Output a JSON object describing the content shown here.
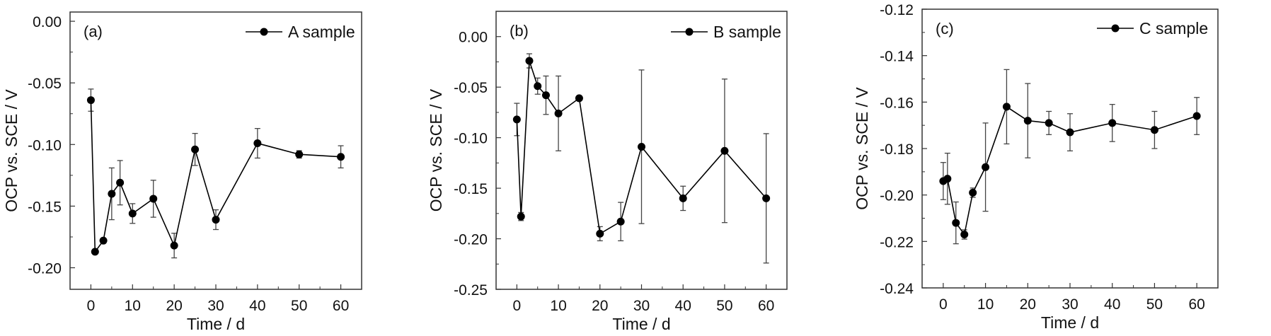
{
  "chart_data": [
    {
      "type": "line",
      "panel_label": "(a)",
      "title": "",
      "xlabel": "Time / d",
      "ylabel": "OCP vs. SCE / V",
      "xlim": [
        -5,
        65
      ],
      "ylim": [
        -0.2175,
        0.0075
      ],
      "xticks": [
        0,
        10,
        20,
        30,
        40,
        50,
        60
      ],
      "xtick_labels": [
        "0",
        "10",
        "20",
        "30",
        "40",
        "50",
        "60"
      ],
      "yticks": [
        0.0,
        -0.05,
        -0.1,
        -0.15,
        -0.2
      ],
      "ytick_labels": [
        "0.00",
        "-0.05",
        "-0.10",
        "-0.15",
        "-0.20"
      ],
      "legend_position": "top-right",
      "grid": false,
      "series": [
        {
          "name": "A sample",
          "color": "#000000",
          "marker": "circle",
          "x": [
            0,
            1,
            3,
            5,
            7,
            10,
            15,
            20,
            25,
            30,
            40,
            50,
            60
          ],
          "y": [
            -0.064,
            -0.187,
            -0.178,
            -0.14,
            -0.131,
            -0.156,
            -0.144,
            -0.182,
            -0.104,
            -0.161,
            -0.099,
            -0.108,
            -0.11
          ],
          "error": [
            0.009,
            0.001,
            0.001,
            0.021,
            0.018,
            0.008,
            0.015,
            0.01,
            0.013,
            0.008,
            0.012,
            0.003,
            0.009
          ]
        }
      ]
    },
    {
      "type": "line",
      "panel_label": "(b)",
      "title": "",
      "xlabel": "Time / d",
      "ylabel": "OCP vs. SCE / V",
      "xlim": [
        -5,
        65
      ],
      "ylim": [
        -0.25,
        0.025
      ],
      "xticks": [
        0,
        10,
        20,
        30,
        40,
        50,
        60
      ],
      "xtick_labels": [
        "0",
        "10",
        "20",
        "30",
        "40",
        "50",
        "60"
      ],
      "yticks": [
        0.0,
        -0.05,
        -0.1,
        -0.15,
        -0.2,
        -0.25
      ],
      "ytick_labels": [
        "0.00",
        "-0.05",
        "-0.10",
        "-0.15",
        "-0.20",
        "-0.25"
      ],
      "legend_position": "top-right",
      "grid": false,
      "series": [
        {
          "name": "B sample",
          "color": "#000000",
          "marker": "circle",
          "x": [
            0,
            1,
            3,
            5,
            7,
            10,
            15,
            20,
            25,
            30,
            40,
            50,
            60
          ],
          "y": [
            -0.082,
            -0.178,
            -0.024,
            -0.049,
            -0.058,
            -0.076,
            -0.061,
            -0.195,
            -0.183,
            -0.109,
            -0.16,
            -0.113,
            -0.16
          ],
          "error": [
            0.016,
            0.004,
            0.007,
            0.008,
            0.019,
            0.037,
            0.001,
            0.007,
            0.019,
            0.076,
            0.012,
            0.071,
            0.064
          ]
        }
      ]
    },
    {
      "type": "line",
      "panel_label": "(c)",
      "title": "",
      "xlabel": "Time / d",
      "ylabel": "OCP vs. SCE / V",
      "xlim": [
        -5,
        65
      ],
      "ylim": [
        -0.24,
        -0.12
      ],
      "xticks": [
        0,
        10,
        20,
        30,
        40,
        50,
        60
      ],
      "xtick_labels": [
        "0",
        "10",
        "20",
        "30",
        "40",
        "50",
        "60"
      ],
      "yticks": [
        -0.12,
        -0.14,
        -0.16,
        -0.18,
        -0.2,
        -0.22,
        -0.24
      ],
      "ytick_labels": [
        "-0.12",
        "-0.14",
        "-0.16",
        "-0.18",
        "-0.20",
        "-0.22",
        "-0.24"
      ],
      "legend_position": "top-right",
      "grid": false,
      "series": [
        {
          "name": "C sample",
          "color": "#000000",
          "marker": "circle",
          "x": [
            0,
            1,
            3,
            5,
            7,
            10,
            15,
            20,
            25,
            30,
            40,
            50,
            60
          ],
          "y": [
            -0.194,
            -0.193,
            -0.212,
            -0.217,
            -0.199,
            -0.188,
            -0.162,
            -0.168,
            -0.169,
            -0.173,
            -0.169,
            -0.172,
            -0.166
          ],
          "error": [
            0.008,
            0.011,
            0.009,
            0.002,
            0.002,
            0.019,
            0.016,
            0.016,
            0.005,
            0.008,
            0.008,
            0.008,
            0.008
          ]
        }
      ]
    }
  ]
}
